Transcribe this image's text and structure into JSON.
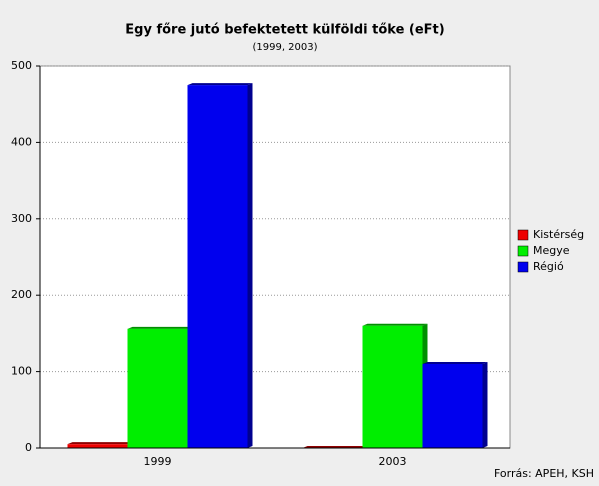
{
  "chart_data": {
    "type": "bar",
    "title": "Egy főre jutó befektetett külföldi tőke (eFt)",
    "subtitle": "(1999, 2003)",
    "source": "Forrás: APEH, KSH",
    "categories": [
      "1999",
      "2003"
    ],
    "series": [
      {
        "name": "Kistérség",
        "color": "#ee0000",
        "values": [
          5,
          0
        ]
      },
      {
        "name": "Megye",
        "color": "#00ee00",
        "values": [
          156,
          160
        ]
      },
      {
        "name": "Régió",
        "color": "#0000ee",
        "values": [
          475,
          110
        ]
      }
    ],
    "ylim": [
      0,
      500
    ],
    "yticks": [
      0,
      100,
      200,
      300,
      400,
      500
    ],
    "grid": true,
    "legend": "right"
  }
}
